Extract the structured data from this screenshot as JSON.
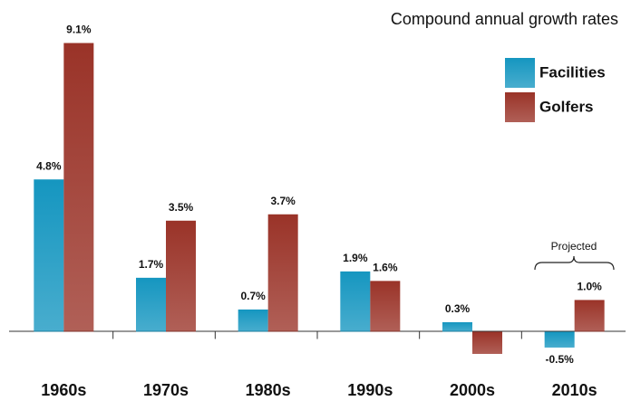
{
  "chart_data": {
    "type": "bar",
    "subtitle": "Compound annual growth rates",
    "categories": [
      "1960s",
      "1970s",
      "1980s",
      "1990s",
      "2000s",
      "2010s"
    ],
    "series": [
      {
        "name": "Facilities",
        "color": "#1596c0",
        "values": [
          4.8,
          1.7,
          0.7,
          1.9,
          0.3,
          -0.5
        ],
        "value_labels": [
          "4.8%",
          "1.7%",
          "0.7%",
          "1.9%",
          "0.3%",
          "-0.5%"
        ]
      },
      {
        "name": "Golfers",
        "color": "#9a3328",
        "values": [
          9.1,
          3.5,
          3.7,
          1.6,
          -0.7,
          1.0
        ],
        "value_labels": [
          "9.1%",
          "3.5%",
          "3.7%",
          "1.6%",
          null,
          "1.0%"
        ]
      }
    ],
    "annotation": "Projected",
    "ylim": [
      -1.1,
      9.6
    ],
    "legend": "top-right"
  }
}
